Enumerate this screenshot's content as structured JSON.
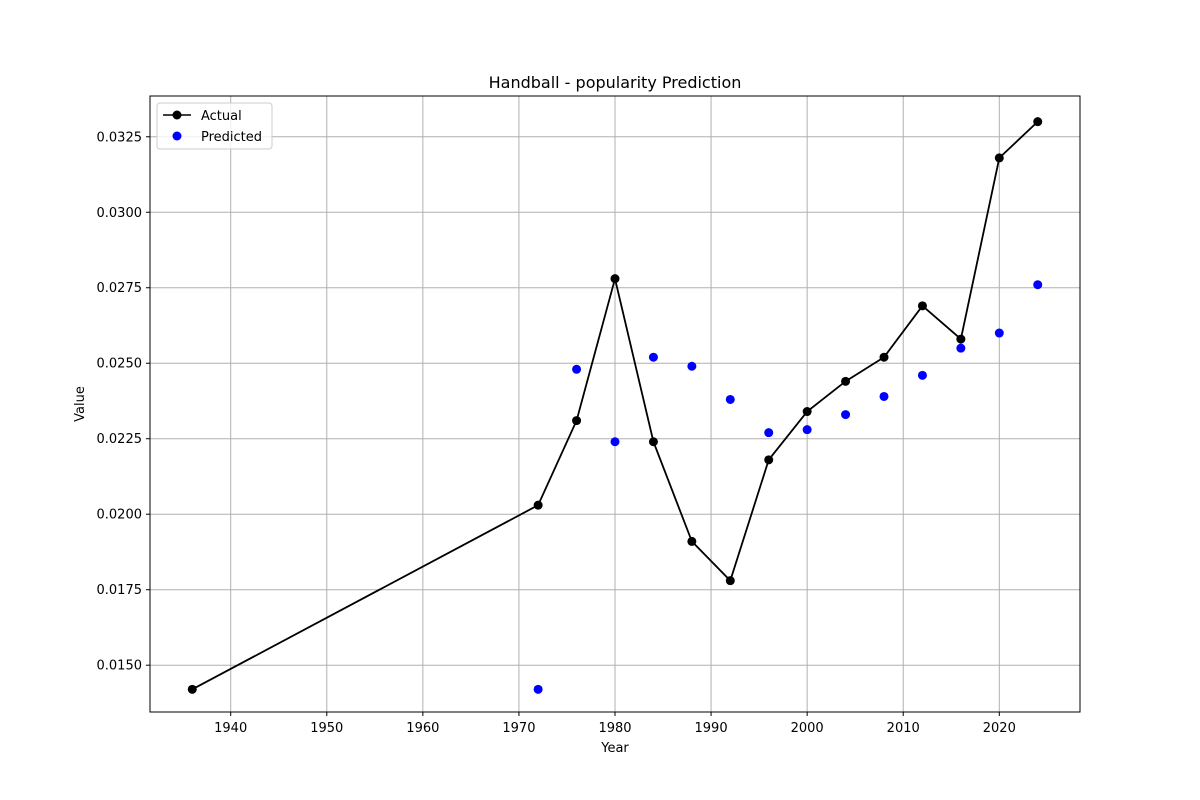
{
  "chart_data": {
    "type": "line",
    "title": "Handball - popularity Prediction",
    "xlabel": "Year",
    "ylabel": "Value",
    "xlim": [
      1931.6,
      2028.4
    ],
    "ylim": [
      0.01345,
      0.03385
    ],
    "xticks": [
      1940,
      1950,
      1960,
      1970,
      1980,
      1990,
      2000,
      2010,
      2020
    ],
    "yticks": [
      0.015,
      0.0175,
      0.02,
      0.0225,
      0.025,
      0.0275,
      0.03,
      0.0325
    ],
    "ytick_labels": [
      "0.0150",
      "0.0175",
      "0.0200",
      "0.0225",
      "0.0250",
      "0.0275",
      "0.0300",
      "0.0325"
    ],
    "grid": true,
    "legend": "top-left",
    "colors": {
      "actual": "#000000",
      "predicted": "#0000ff",
      "grid": "#b0b0b0"
    },
    "series": [
      {
        "name": "Actual",
        "style": "line-marker",
        "x": [
          1936,
          1972,
          1976,
          1980,
          1984,
          1988,
          1992,
          1996,
          2000,
          2004,
          2008,
          2012,
          2016,
          2020,
          2024
        ],
        "values": [
          0.0142,
          0.0203,
          0.0231,
          0.0278,
          0.0224,
          0.0191,
          0.0178,
          0.0218,
          0.0234,
          0.0244,
          0.0252,
          0.0269,
          0.0258,
          0.0318,
          0.033
        ]
      },
      {
        "name": "Predicted",
        "style": "scatter",
        "x": [
          1972,
          1976,
          1980,
          1984,
          1988,
          1992,
          1996,
          2000,
          2004,
          2008,
          2012,
          2016,
          2020,
          2024
        ],
        "values": [
          0.0142,
          0.0248,
          0.0224,
          0.0252,
          0.0249,
          0.0238,
          0.0227,
          0.0228,
          0.0233,
          0.0239,
          0.0246,
          0.0255,
          0.026,
          0.0276
        ]
      }
    ]
  }
}
